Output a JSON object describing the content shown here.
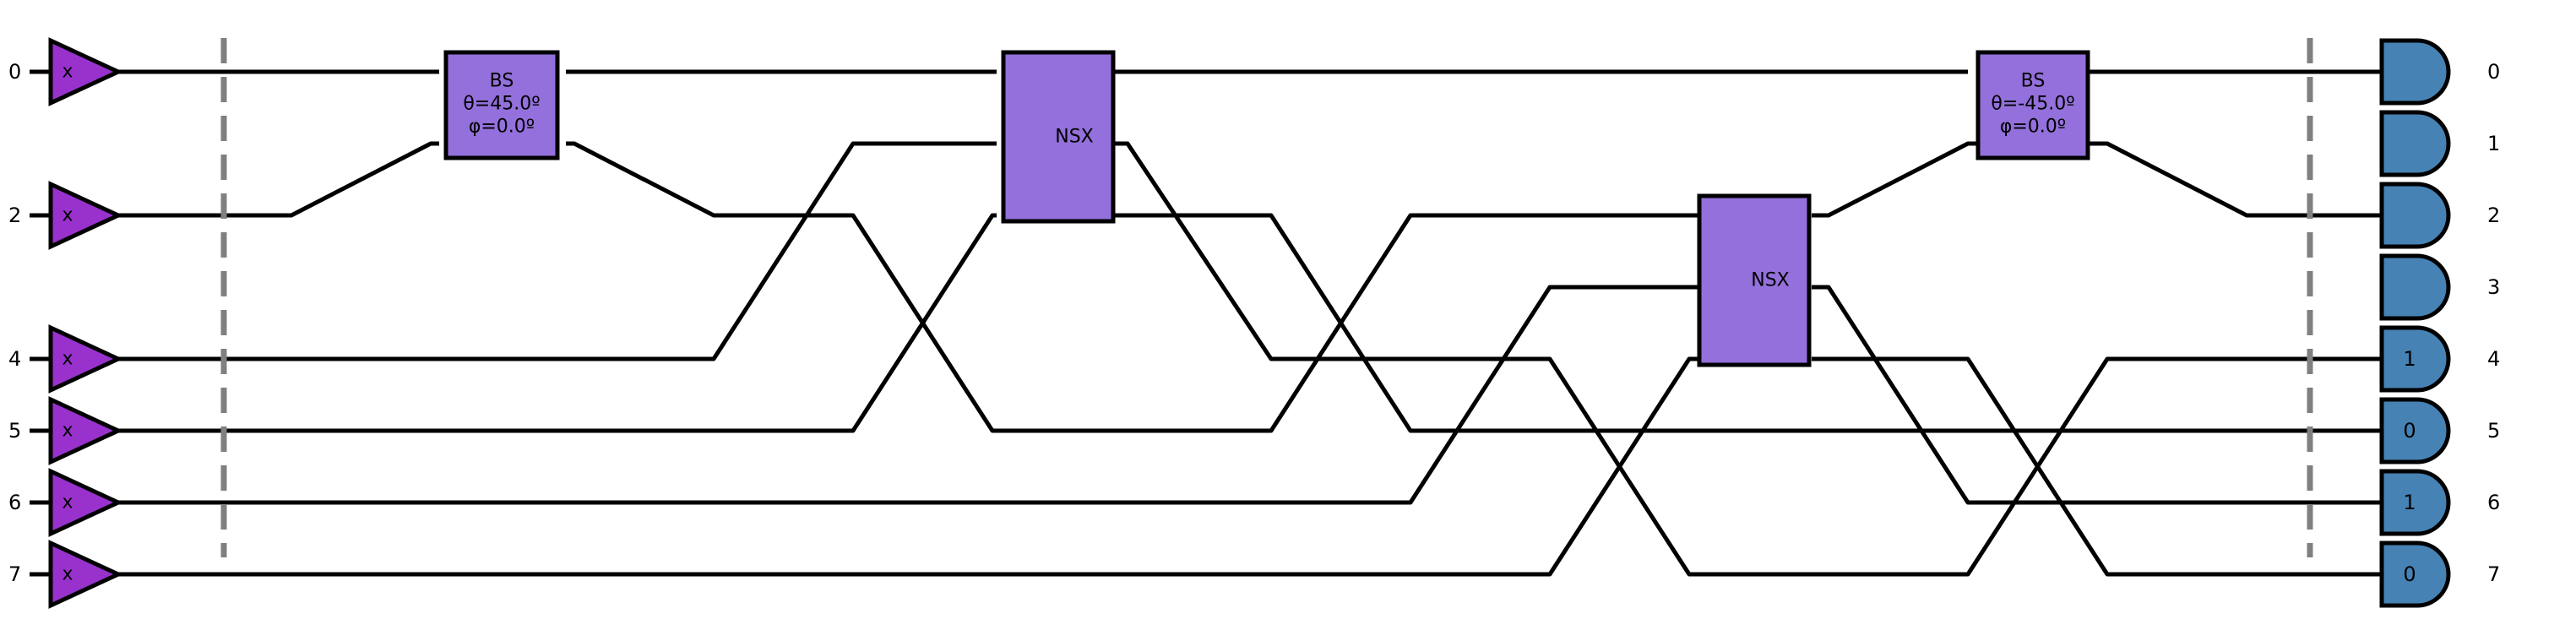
{
  "diagram": {
    "colors": {
      "source_fill": "#9932CC",
      "gate_fill": "#9370DB",
      "detector_fill": "#4682B4",
      "wire": "#000000",
      "barrier": "#808080"
    },
    "left_mode_labels": [
      "0",
      "2",
      "4",
      "5",
      "6",
      "7"
    ],
    "sources": [
      {
        "mode": "0",
        "label": "x"
      },
      {
        "mode": "2",
        "label": "x"
      },
      {
        "mode": "4",
        "label": "x"
      },
      {
        "mode": "5",
        "label": "x"
      },
      {
        "mode": "6",
        "label": "x"
      },
      {
        "mode": "7",
        "label": "x"
      }
    ],
    "gates": {
      "bs1": {
        "name": "BS",
        "theta": "θ=45.0º",
        "phi": "φ=0.0º"
      },
      "nsx1": {
        "name": "NSX"
      },
      "nsx2": {
        "name": "NSX"
      },
      "bs2": {
        "name": "BS",
        "theta": "θ=-45.0º",
        "phi": "φ=0.0º"
      }
    },
    "detectors": [
      {
        "mode": "0",
        "value": ""
      },
      {
        "mode": "1",
        "value": ""
      },
      {
        "mode": "2",
        "value": ""
      },
      {
        "mode": "3",
        "value": ""
      },
      {
        "mode": "4",
        "value": "1"
      },
      {
        "mode": "5",
        "value": "0"
      },
      {
        "mode": "6",
        "value": "1"
      },
      {
        "mode": "7",
        "value": "0"
      }
    ],
    "right_mode_labels": [
      "0",
      "1",
      "2",
      "3",
      "4",
      "5",
      "6",
      "7"
    ]
  }
}
